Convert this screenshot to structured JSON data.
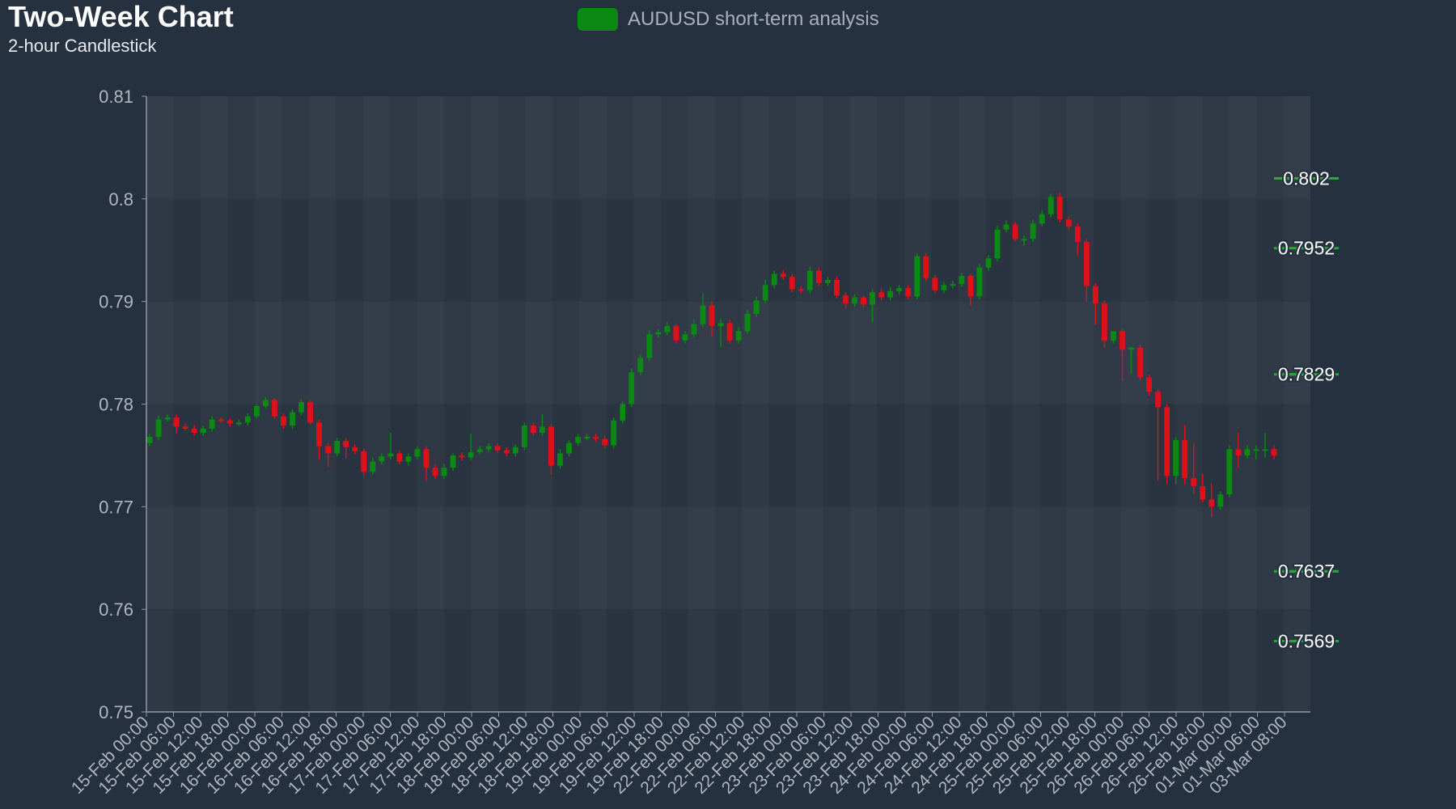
{
  "chart_data": {
    "type": "candlestick",
    "title": "Two-Week Chart",
    "subtitle": "2-hour Candlestick",
    "legend": {
      "label": "AUDUSD short-term analysis",
      "placement": "top-center"
    },
    "colors": {
      "background": "#263140",
      "up": "#0a8a12",
      "down": "#e0101b",
      "level_line": "#18b52a",
      "axis": "#8f99a6",
      "text": "#aeb6c0"
    },
    "ylim": [
      0.75,
      0.81
    ],
    "y_ticks": [
      "0.81",
      "0.8",
      "0.79",
      "0.78",
      "0.77",
      "0.76",
      "0.75"
    ],
    "x_tick_labels": [
      "15-Feb 00:00",
      "15-Feb 06:00",
      "15-Feb 12:00",
      "15-Feb 18:00",
      "16-Feb 00:00",
      "16-Feb 06:00",
      "16-Feb 12:00",
      "16-Feb 18:00",
      "17-Feb 00:00",
      "17-Feb 06:00",
      "17-Feb 12:00",
      "17-Feb 18:00",
      "18-Feb 00:00",
      "18-Feb 06:00",
      "18-Feb 12:00",
      "18-Feb 18:00",
      "19-Feb 00:00",
      "19-Feb 06:00",
      "19-Feb 12:00",
      "19-Feb 18:00",
      "22-Feb 00:00",
      "22-Feb 06:00",
      "22-Feb 12:00",
      "22-Feb 18:00",
      "23-Feb 00:00",
      "23-Feb 06:00",
      "23-Feb 12:00",
      "23-Feb 18:00",
      "24-Feb 00:00",
      "24-Feb 06:00",
      "24-Feb 12:00",
      "24-Feb 18:00",
      "25-Feb 00:00",
      "25-Feb 06:00",
      "25-Feb 12:00",
      "25-Feb 18:00",
      "26-Feb 00:00",
      "26-Feb 06:00",
      "26-Feb 12:00",
      "26-Feb 18:00",
      "01-Mar 00:00",
      "01-Mar 06:00",
      "03-Mar 08:00"
    ],
    "levels": [
      {
        "label": "0.802",
        "value": 0.802
      },
      {
        "label": "0.7952",
        "value": 0.7952
      },
      {
        "label": "0.7829",
        "value": 0.7829
      },
      {
        "label": "0.7637",
        "value": 0.7637
      },
      {
        "label": "0.7569",
        "value": 0.7569
      }
    ],
    "grid": true,
    "closes": [
      0.7768,
      0.7785,
      0.7787,
      0.7778,
      0.7776,
      0.7772,
      0.7776,
      0.7785,
      0.7784,
      0.7781,
      0.7782,
      0.7788,
      0.7798,
      0.7804,
      0.7788,
      0.7779,
      0.7792,
      0.7802,
      0.7782,
      0.7759,
      0.7752,
      0.7764,
      0.7758,
      0.7754,
      0.7734,
      0.7744,
      0.7749,
      0.7752,
      0.7744,
      0.7749,
      0.7756,
      0.7738,
      0.773,
      0.7738,
      0.775,
      0.7748,
      0.7753,
      0.7756,
      0.7759,
      0.7755,
      0.7752,
      0.7758,
      0.7779,
      0.7772,
      0.7778,
      0.774,
      0.7752,
      0.7762,
      0.7768,
      0.7768,
      0.7766,
      0.776,
      0.7784,
      0.78,
      0.7831,
      0.7845,
      0.7868,
      0.787,
      0.7876,
      0.7862,
      0.7868,
      0.7878,
      0.7896,
      0.7876,
      0.7879,
      0.7862,
      0.7871,
      0.7888,
      0.7901,
      0.7916,
      0.7927,
      0.7924,
      0.7912,
      0.7911,
      0.793,
      0.7918,
      0.7921,
      0.7906,
      0.7898,
      0.7904,
      0.7897,
      0.7909,
      0.7904,
      0.791,
      0.7913,
      0.7905,
      0.7944,
      0.7923,
      0.7911,
      0.7916,
      0.7917,
      0.7925,
      0.7905,
      0.7933,
      0.7942,
      0.797,
      0.7975,
      0.7961,
      0.7961,
      0.7976,
      0.7985,
      0.8002,
      0.798,
      0.7973,
      0.7958,
      0.7915,
      0.7898,
      0.7862,
      0.7871,
      0.7853,
      0.7855,
      0.7826,
      0.7812,
      0.7797,
      0.773,
      0.7765,
      0.7728,
      0.772,
      0.7707,
      0.77,
      0.7712,
      0.7756,
      0.775,
      0.7756,
      0.7756,
      0.7756,
      0.775
    ],
    "opens": [
      0.7762,
      0.7768,
      0.7785,
      0.7787,
      0.7778,
      0.7776,
      0.7772,
      0.7776,
      0.7785,
      0.7784,
      0.7781,
      0.7782,
      0.7788,
      0.7798,
      0.7804,
      0.7788,
      0.7779,
      0.7792,
      0.7802,
      0.7782,
      0.7759,
      0.7752,
      0.7764,
      0.7758,
      0.7754,
      0.7734,
      0.7744,
      0.7749,
      0.7752,
      0.7744,
      0.7749,
      0.7756,
      0.7738,
      0.773,
      0.7738,
      0.775,
      0.7748,
      0.7753,
      0.7756,
      0.7759,
      0.7755,
      0.7752,
      0.7758,
      0.7779,
      0.7772,
      0.7778,
      0.774,
      0.7752,
      0.7762,
      0.7768,
      0.7768,
      0.7766,
      0.776,
      0.7784,
      0.78,
      0.7831,
      0.7845,
      0.7868,
      0.787,
      0.7876,
      0.7862,
      0.7868,
      0.7878,
      0.7896,
      0.7876,
      0.7879,
      0.7862,
      0.7871,
      0.7888,
      0.7901,
      0.7916,
      0.7927,
      0.7924,
      0.7912,
      0.7911,
      0.793,
      0.7918,
      0.7921,
      0.7906,
      0.7898,
      0.7904,
      0.7897,
      0.7909,
      0.7904,
      0.791,
      0.7913,
      0.7905,
      0.7944,
      0.7923,
      0.7911,
      0.7916,
      0.7917,
      0.7925,
      0.7905,
      0.7933,
      0.7942,
      0.797,
      0.7975,
      0.7961,
      0.7961,
      0.7976,
      0.7985,
      0.8002,
      0.798,
      0.7973,
      0.7958,
      0.7915,
      0.7898,
      0.7862,
      0.7871,
      0.7853,
      0.7855,
      0.7826,
      0.7812,
      0.7797,
      0.773,
      0.7765,
      0.7728,
      0.772,
      0.7707,
      0.77,
      0.7712,
      0.7756,
      0.775,
      0.7756,
      0.7756,
      0.7756
    ],
    "highs": [
      0.7771,
      0.7789,
      0.779,
      0.779,
      0.7781,
      0.778,
      0.7779,
      0.7788,
      0.7787,
      0.7786,
      0.7785,
      0.7791,
      0.78,
      0.7807,
      0.7806,
      0.7791,
      0.7795,
      0.7805,
      0.7804,
      0.7785,
      0.7762,
      0.7767,
      0.7767,
      0.7761,
      0.7757,
      0.7748,
      0.7752,
      0.7772,
      0.7755,
      0.7752,
      0.7759,
      0.7759,
      0.7742,
      0.7742,
      0.7752,
      0.7753,
      0.7771,
      0.7759,
      0.7762,
      0.7762,
      0.7758,
      0.7761,
      0.7782,
      0.7782,
      0.779,
      0.7781,
      0.7756,
      0.7765,
      0.7771,
      0.7771,
      0.7771,
      0.7769,
      0.7787,
      0.7803,
      0.7835,
      0.7849,
      0.7872,
      0.7873,
      0.788,
      0.7878,
      0.7871,
      0.7882,
      0.7908,
      0.79,
      0.7883,
      0.7882,
      0.7875,
      0.7892,
      0.7905,
      0.7921,
      0.793,
      0.7931,
      0.7927,
      0.7915,
      0.7934,
      0.7933,
      0.7924,
      0.7925,
      0.7909,
      0.7907,
      0.7906,
      0.7912,
      0.7913,
      0.7914,
      0.7916,
      0.7916,
      0.7947,
      0.7947,
      0.7926,
      0.7919,
      0.792,
      0.7928,
      0.7927,
      0.7937,
      0.7945,
      0.7974,
      0.7979,
      0.7978,
      0.7964,
      0.798,
      0.7989,
      0.8005,
      0.8006,
      0.7983,
      0.7976,
      0.7961,
      0.7918,
      0.7901,
      0.7866,
      0.7874,
      0.7856,
      0.7858,
      0.7829,
      0.7815,
      0.78,
      0.7768,
      0.778,
      0.7762,
      0.7732,
      0.7723,
      0.7715,
      0.776,
      0.7772,
      0.776,
      0.776,
      0.7772,
      0.776
    ],
    "lows": [
      0.7759,
      0.7765,
      0.7783,
      0.7771,
      0.7774,
      0.7769,
      0.7769,
      0.7773,
      0.7782,
      0.7778,
      0.7779,
      0.7779,
      0.7786,
      0.7796,
      0.7786,
      0.7776,
      0.7776,
      0.7789,
      0.778,
      0.7746,
      0.7739,
      0.7749,
      0.7747,
      0.7751,
      0.773,
      0.7731,
      0.7741,
      0.7746,
      0.7741,
      0.774,
      0.7746,
      0.7725,
      0.7727,
      0.7727,
      0.7735,
      0.7745,
      0.7745,
      0.7751,
      0.7753,
      0.7752,
      0.7749,
      0.7749,
      0.7755,
      0.7769,
      0.7769,
      0.7731,
      0.7737,
      0.7749,
      0.7759,
      0.7765,
      0.7763,
      0.7757,
      0.7757,
      0.7781,
      0.7797,
      0.7828,
      0.7842,
      0.7865,
      0.7867,
      0.7859,
      0.7859,
      0.7865,
      0.7875,
      0.7866,
      0.7856,
      0.7859,
      0.7859,
      0.7868,
      0.7885,
      0.7898,
      0.7913,
      0.7921,
      0.7909,
      0.7908,
      0.7908,
      0.7915,
      0.7915,
      0.7903,
      0.7893,
      0.7895,
      0.7894,
      0.788,
      0.7901,
      0.7901,
      0.7907,
      0.7902,
      0.7902,
      0.792,
      0.7908,
      0.7908,
      0.7913,
      0.7914,
      0.7896,
      0.7902,
      0.793,
      0.7939,
      0.7967,
      0.7958,
      0.7954,
      0.7958,
      0.7973,
      0.7982,
      0.7977,
      0.797,
      0.7945,
      0.79,
      0.7877,
      0.7855,
      0.7859,
      0.7823,
      0.783,
      0.7823,
      0.7808,
      0.7725,
      0.7722,
      0.7722,
      0.7722,
      0.7712,
      0.7704,
      0.769,
      0.7697,
      0.7709,
      0.7738,
      0.7747,
      0.7746,
      0.7748,
      0.7746
    ]
  }
}
